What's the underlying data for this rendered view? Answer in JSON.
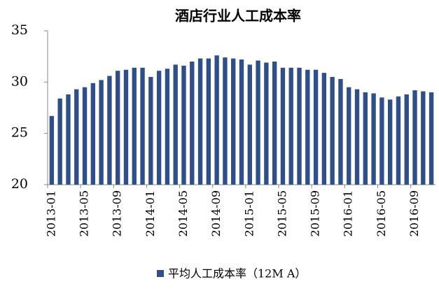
{
  "chart_data": {
    "type": "bar",
    "title": "酒店行业人工成本率",
    "categories": [
      "2013-01",
      null,
      null,
      null,
      "2013-05",
      null,
      null,
      null,
      "2013-09",
      null,
      null,
      null,
      "2014-01",
      null,
      null,
      null,
      "2014-05",
      null,
      null,
      null,
      "2014-09",
      null,
      null,
      null,
      "2015-01",
      null,
      null,
      null,
      "2015-05",
      null,
      null,
      null,
      "2015-09",
      null,
      null,
      null,
      "2016-01",
      null,
      null,
      null,
      "2016-05",
      null,
      null,
      null,
      "2016-09",
      null,
      null
    ],
    "series": [
      {
        "name": "平均人工成本率（12M A）",
        "color": "#2f4f8a",
        "values": [
          26.7,
          28.4,
          28.8,
          29.3,
          29.5,
          29.9,
          30.2,
          30.6,
          31.1,
          31.2,
          31.4,
          31.4,
          30.5,
          31.1,
          31.3,
          31.7,
          31.6,
          32.0,
          32.3,
          32.3,
          32.6,
          32.4,
          32.3,
          32.2,
          31.7,
          32.1,
          31.9,
          32.0,
          31.4,
          31.4,
          31.4,
          31.2,
          31.2,
          30.9,
          30.5,
          30.3,
          29.5,
          29.3,
          29.0,
          28.9,
          28.5,
          28.3,
          28.6,
          28.8,
          29.2,
          29.1,
          29.0
        ]
      }
    ],
    "ylim": [
      20,
      35
    ],
    "yticks": [
      20,
      25,
      30,
      35
    ],
    "grid": false,
    "legend": "bottom"
  }
}
